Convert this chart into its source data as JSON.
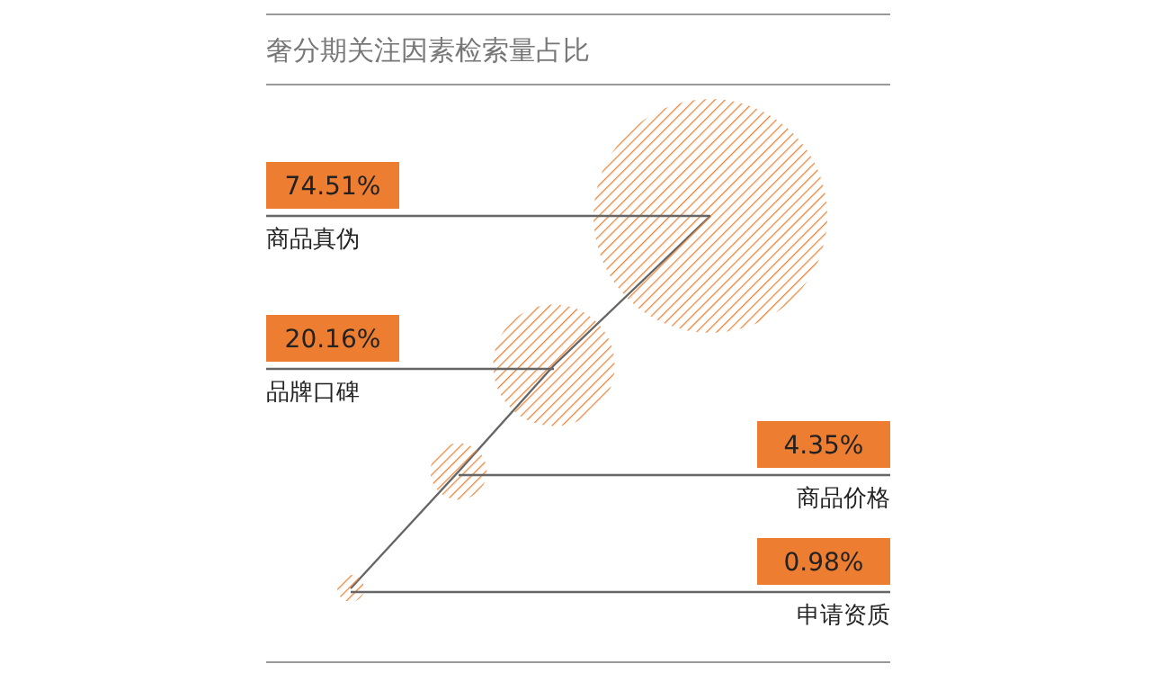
{
  "chart_data": {
    "type": "other",
    "title": "奢分期关注因素检索量占比",
    "categories": [
      "商品真伪",
      "品牌口碑",
      "商品价格",
      "申请资质"
    ],
    "values": [
      74.51,
      20.16,
      4.35,
      0.98
    ],
    "value_labels": [
      "74.51%",
      "20.16%",
      "4.35%",
      "0.98%"
    ],
    "color": "#e8853a"
  }
}
